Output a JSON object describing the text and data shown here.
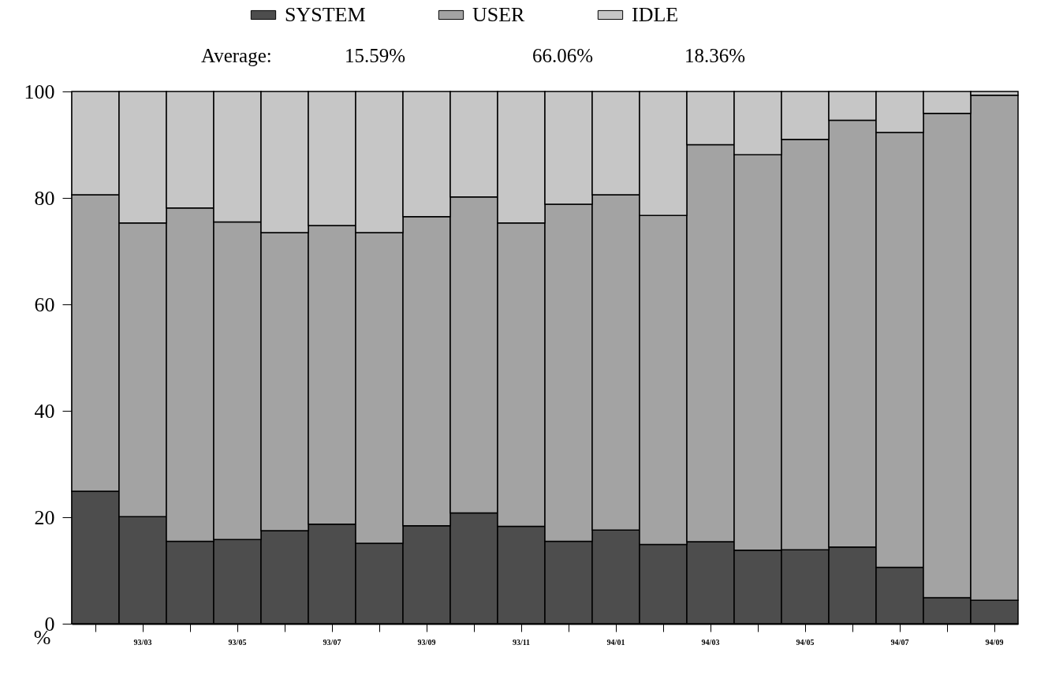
{
  "chart_data": {
    "type": "bar",
    "stacked": true,
    "categories": [
      null,
      "93/03",
      null,
      "93/05",
      null,
      "93/07",
      null,
      "93/09",
      null,
      "93/11",
      null,
      "94/01",
      null,
      "94/03",
      null,
      "94/05",
      null,
      "94/07",
      null,
      "94/09"
    ],
    "series": [
      {
        "name": "SYSTEM",
        "color": "#4d4d4d",
        "values": [
          24.9,
          20.1,
          15.5,
          15.8,
          17.5,
          18.7,
          15.1,
          18.4,
          20.8,
          18.3,
          15.5,
          17.6,
          14.9,
          15.4,
          13.8,
          13.9,
          14.4,
          10.6,
          4.9,
          4.4
        ]
      },
      {
        "name": "USER",
        "color": "#a3a3a3",
        "values": [
          55.7,
          55.2,
          62.6,
          59.7,
          56.0,
          56.1,
          58.4,
          58.1,
          59.4,
          57.0,
          63.3,
          63.0,
          61.8,
          74.6,
          74.3,
          77.1,
          80.2,
          81.7,
          91.0,
          94.9
        ]
      },
      {
        "name": "IDLE",
        "color": "#c6c6c6",
        "values": [
          19.4,
          24.7,
          21.9,
          24.5,
          26.5,
          25.2,
          26.5,
          23.5,
          19.8,
          24.7,
          21.2,
          19.4,
          23.3,
          10.0,
          11.9,
          9.0,
          5.4,
          7.7,
          4.1,
          0.7
        ]
      }
    ],
    "ylim": [
      0,
      100
    ],
    "yticks": [
      0,
      20,
      40,
      60,
      80,
      100
    ],
    "ylabel": "%",
    "legend": "top",
    "annotations": [
      "Average:",
      "15.59%",
      "66.06%",
      "18.36%"
    ]
  }
}
